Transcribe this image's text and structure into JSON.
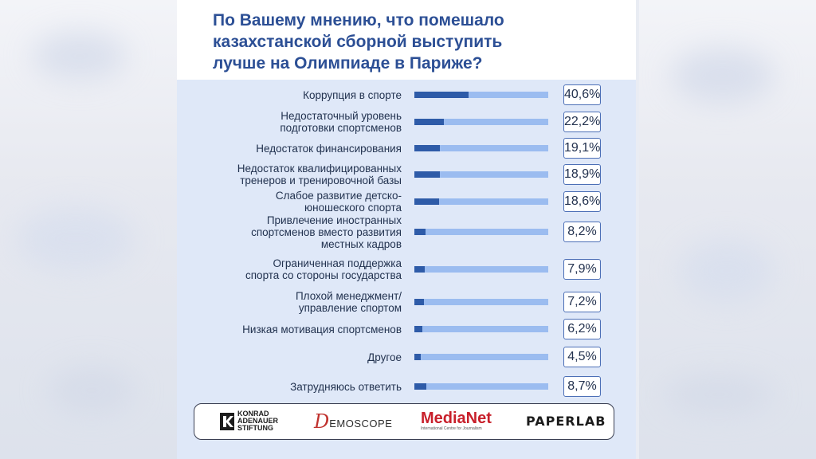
{
  "chart_data": {
    "type": "bar",
    "title": "По Вашему мнению, что помешало казахстанской сборной выступить лучше на Олимпиаде в Париже?",
    "title_lines": [
      "По Вашему мнению, что помешало",
      "казахстанской сборной выступить",
      "лучше на Олимпиаде в Париже?"
    ],
    "xlim": [
      0,
      100
    ],
    "categories": [
      [
        "Коррупция в спорте"
      ],
      [
        "Недостаточный уровень",
        "подготовки спортсменов"
      ],
      [
        "Недостаток финансирования"
      ],
      [
        "Недостаток квалифицированных",
        "тренеров и тренировочной базы"
      ],
      [
        "Слабое развитие детско-",
        "юношеского спорта"
      ],
      [
        "Привлечение иностранных",
        "спортсменов вместо развития",
        "местных кадров"
      ],
      [
        "Ограниченная поддержка",
        "спорта со стороны государства"
      ],
      [
        "Плохой менеджмент/",
        "управление спортом"
      ],
      [
        "Низкая мотивация спортсменов"
      ],
      [
        "Другое"
      ],
      [
        "Затрудняюсь ответить"
      ]
    ],
    "values": [
      40.6,
      22.2,
      19.1,
      18.9,
      18.6,
      8.2,
      7.9,
      7.2,
      6.2,
      4.5,
      8.7
    ],
    "value_labels": [
      "40,6%",
      "22,2%",
      "19,1%",
      "18,9%",
      "18,6%",
      "8,2%",
      "7,9%",
      "7,2%",
      "6,2%",
      "4,5%",
      "8,7%"
    ],
    "colors": {
      "fill": "#2e5ba8",
      "track": "#9bbcf0",
      "title": "#2c4f95"
    }
  },
  "logos": {
    "kas": [
      "KONRAD",
      "ADENAUER",
      "STIFTUNG"
    ],
    "demoscope_initial": "D",
    "demoscope_rest": "EMOSCOPE",
    "medianet": "MediaNet",
    "medianet_sub": "International Centre for Journalism",
    "paperlab": "PAPERLAB"
  }
}
